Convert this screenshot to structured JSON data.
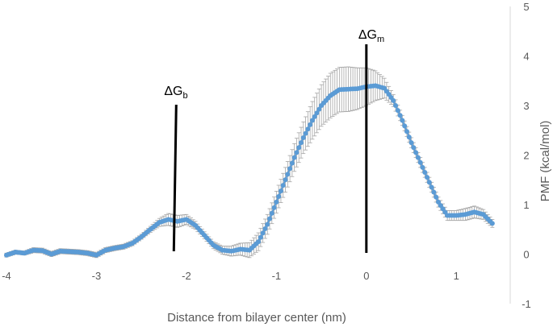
{
  "chart_data": {
    "type": "scatter",
    "title": "",
    "xlabel": "Distance from bilayer center (nm)",
    "ylabel": "PMF (kcal/mol)",
    "xlim": [
      -4,
      1.5
    ],
    "ylim": [
      -1,
      5
    ],
    "x_ticks": [
      "-4",
      "-3",
      "-2",
      "-1",
      "0",
      "1"
    ],
    "y_ticks": [
      "-1",
      "0",
      "1",
      "2",
      "3",
      "4",
      "5"
    ],
    "grid": false,
    "series_color": "#5B9BD5",
    "errorbar_color": "#A6A6A6",
    "series": [
      {
        "points": [
          {
            "x": -4.0,
            "y": -0.02,
            "err": 0.04
          },
          {
            "x": -3.9,
            "y": 0.04,
            "err": 0.04
          },
          {
            "x": -3.8,
            "y": 0.02,
            "err": 0.04
          },
          {
            "x": -3.7,
            "y": 0.08,
            "err": 0.05
          },
          {
            "x": -3.6,
            "y": 0.07,
            "err": 0.05
          },
          {
            "x": -3.5,
            "y": 0.0,
            "err": 0.05
          },
          {
            "x": -3.4,
            "y": 0.06,
            "err": 0.05
          },
          {
            "x": -3.3,
            "y": 0.05,
            "err": 0.05
          },
          {
            "x": -3.2,
            "y": 0.04,
            "err": 0.05
          },
          {
            "x": -3.1,
            "y": 0.02,
            "err": 0.05
          },
          {
            "x": -3.0,
            "y": -0.02,
            "err": 0.05
          },
          {
            "x": -2.9,
            "y": 0.08,
            "err": 0.05
          },
          {
            "x": -2.8,
            "y": 0.12,
            "err": 0.05
          },
          {
            "x": -2.7,
            "y": 0.15,
            "err": 0.05
          },
          {
            "x": -2.6,
            "y": 0.22,
            "err": 0.05
          },
          {
            "x": -2.5,
            "y": 0.35,
            "err": 0.05
          },
          {
            "x": -2.4,
            "y": 0.5,
            "err": 0.06
          },
          {
            "x": -2.3,
            "y": 0.64,
            "err": 0.08
          },
          {
            "x": -2.2,
            "y": 0.7,
            "err": 0.12
          },
          {
            "x": -2.1,
            "y": 0.66,
            "err": 0.12
          },
          {
            "x": -2.0,
            "y": 0.7,
            "err": 0.1
          },
          {
            "x": -1.9,
            "y": 0.58,
            "err": 0.08
          },
          {
            "x": -1.8,
            "y": 0.38,
            "err": 0.07
          },
          {
            "x": -1.7,
            "y": 0.18,
            "err": 0.07
          },
          {
            "x": -1.6,
            "y": 0.08,
            "err": 0.08
          },
          {
            "x": -1.5,
            "y": 0.06,
            "err": 0.1
          },
          {
            "x": -1.4,
            "y": 0.1,
            "err": 0.12
          },
          {
            "x": -1.3,
            "y": 0.08,
            "err": 0.15
          },
          {
            "x": -1.2,
            "y": 0.25,
            "err": 0.18
          },
          {
            "x": -1.1,
            "y": 0.6,
            "err": 0.2
          },
          {
            "x": -1.0,
            "y": 1.05,
            "err": 0.22
          },
          {
            "x": -0.9,
            "y": 1.5,
            "err": 0.25
          },
          {
            "x": -0.8,
            "y": 1.95,
            "err": 0.28
          },
          {
            "x": -0.7,
            "y": 2.35,
            "err": 0.32
          },
          {
            "x": -0.6,
            "y": 2.7,
            "err": 0.38
          },
          {
            "x": -0.5,
            "y": 3.0,
            "err": 0.42
          },
          {
            "x": -0.4,
            "y": 3.2,
            "err": 0.45
          },
          {
            "x": -0.3,
            "y": 3.32,
            "err": 0.45
          },
          {
            "x": -0.2,
            "y": 3.33,
            "err": 0.45
          },
          {
            "x": -0.1,
            "y": 3.34,
            "err": 0.42
          },
          {
            "x": 0.0,
            "y": 3.38,
            "err": 0.38
          },
          {
            "x": 0.1,
            "y": 3.4,
            "err": 0.3
          },
          {
            "x": 0.2,
            "y": 3.35,
            "err": 0.2
          },
          {
            "x": 0.3,
            "y": 3.1,
            "err": 0.12
          },
          {
            "x": 0.4,
            "y": 2.7,
            "err": 0.1
          },
          {
            "x": 0.5,
            "y": 2.25,
            "err": 0.1
          },
          {
            "x": 0.6,
            "y": 1.85,
            "err": 0.1
          },
          {
            "x": 0.7,
            "y": 1.45,
            "err": 0.1
          },
          {
            "x": 0.8,
            "y": 1.05,
            "err": 0.1
          },
          {
            "x": 0.9,
            "y": 0.78,
            "err": 0.1
          },
          {
            "x": 1.0,
            "y": 0.78,
            "err": 0.1
          },
          {
            "x": 1.1,
            "y": 0.8,
            "err": 0.12
          },
          {
            "x": 1.2,
            "y": 0.85,
            "err": 0.12
          },
          {
            "x": 1.3,
            "y": 0.8,
            "err": 0.1
          },
          {
            "x": 1.4,
            "y": 0.62,
            "err": 0.08
          }
        ]
      }
    ],
    "annotations": [
      {
        "base": "ΔG",
        "sub": "b",
        "x": -2.14
      },
      {
        "base": "ΔG",
        "sub": "m",
        "x": 0.0
      }
    ]
  }
}
